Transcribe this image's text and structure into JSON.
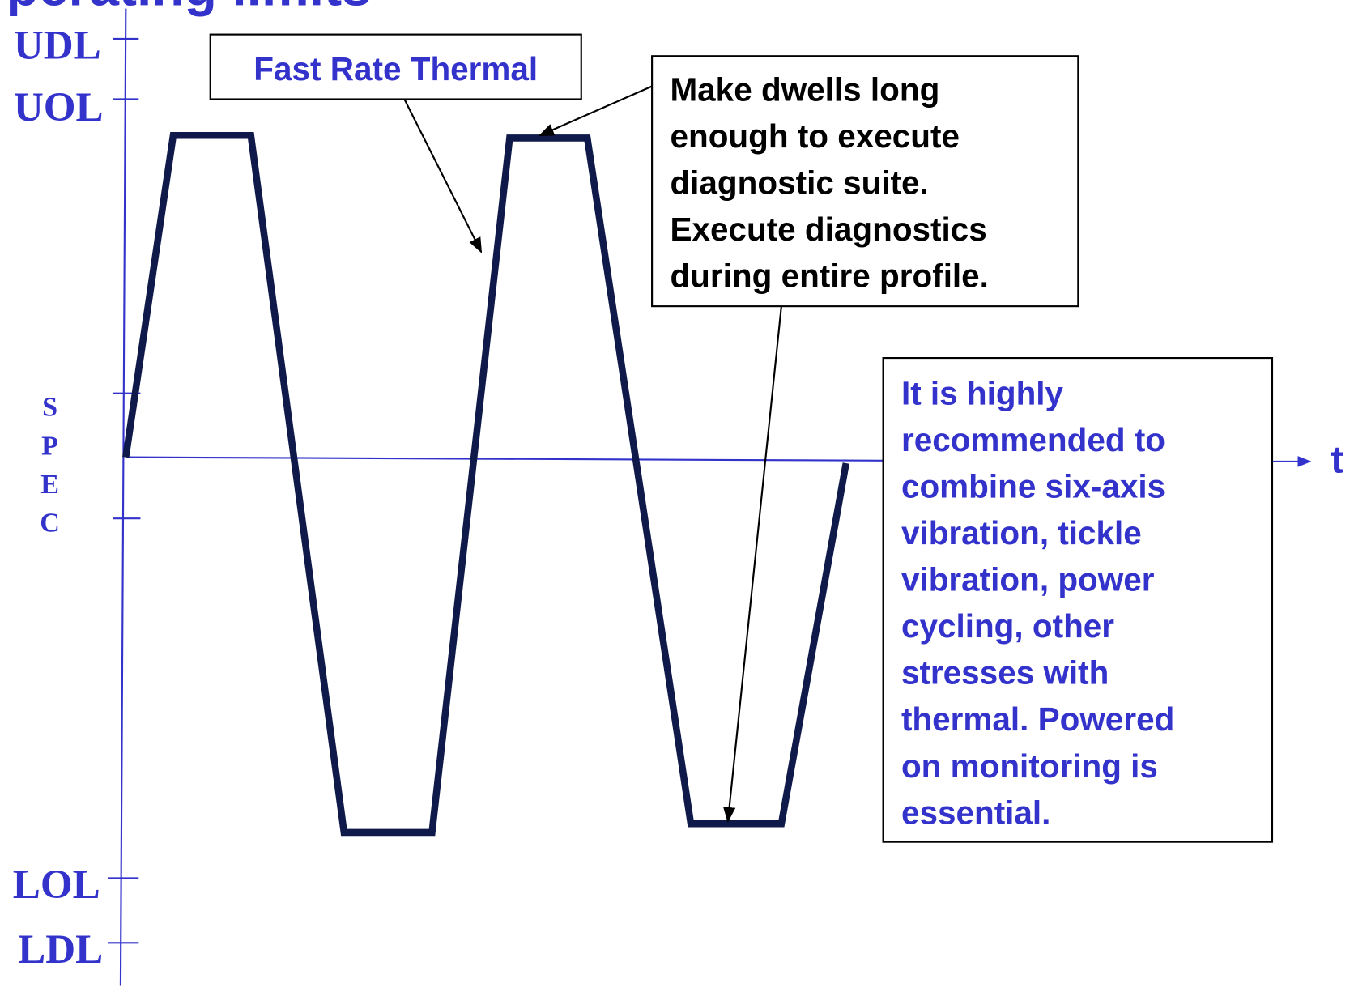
{
  "title": "Operating limits",
  "axis": {
    "udl": "UDL",
    "uol": "UOL",
    "spec": "SPEC",
    "lol": "LOL",
    "ldl": "LDL",
    "t": "t"
  },
  "callouts": {
    "fast_rate": "Fast Rate Thermal",
    "dwells": [
      "Make dwells long",
      "enough to execute",
      "diagnostic suite.",
      "Execute diagnostics",
      "during entire profile."
    ],
    "recommend": [
      "It is highly",
      "recommended to",
      "combine six-axis",
      "vibration, tickle",
      "vibration, power",
      "cycling, other",
      "stresses with",
      "thermal.  Powered",
      "on monitoring is",
      "essential."
    ]
  }
}
